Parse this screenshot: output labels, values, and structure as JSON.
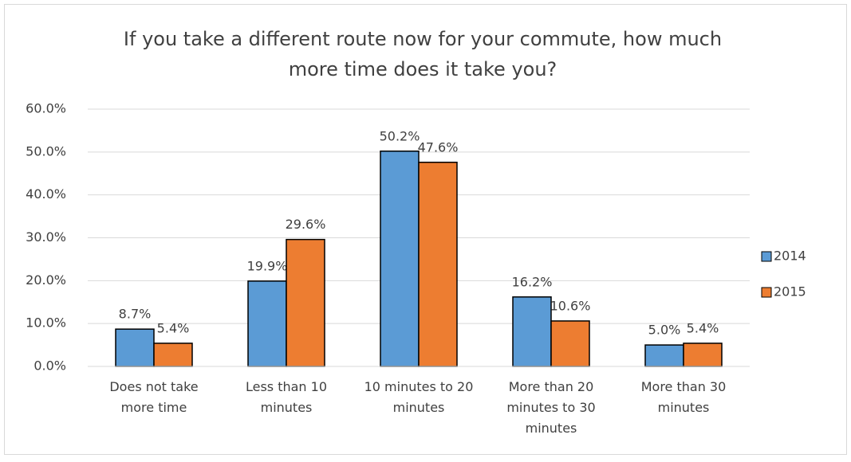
{
  "chart_data": {
    "type": "bar",
    "title": "If you take a different route now for your commute, how much more time does it take you?",
    "categories": [
      "Does not take more time",
      "Less than 10 minutes",
      "10 minutes to 20 minutes",
      "More than 20 minutes to 30 minutes",
      "More than 30 minutes"
    ],
    "series": [
      {
        "name": "2014",
        "color": "#5b9bd5",
        "values": [
          8.7,
          19.9,
          50.2,
          16.2,
          5.0
        ],
        "value_labels": [
          "8.7%",
          "19.9%",
          "50.2%",
          "16.2%",
          "5.0%"
        ]
      },
      {
        "name": "2015",
        "color": "#ed7d31",
        "values": [
          5.4,
          29.6,
          47.6,
          10.6,
          5.4
        ],
        "value_labels": [
          "5.4%",
          "29.6%",
          "47.6%",
          "10.6%",
          "5.4%"
        ]
      }
    ],
    "ylim": [
      0,
      60
    ],
    "yticks": [
      {
        "value": 0,
        "label": "0.0%"
      },
      {
        "value": 10,
        "label": "10.0%"
      },
      {
        "value": 20,
        "label": "20.0%"
      },
      {
        "value": 30,
        "label": "30.0%"
      },
      {
        "value": 40,
        "label": "40.0%"
      },
      {
        "value": 50,
        "label": "50.0%"
      },
      {
        "value": 60,
        "label": "60.0%"
      }
    ],
    "grid": true,
    "legend": "right"
  }
}
